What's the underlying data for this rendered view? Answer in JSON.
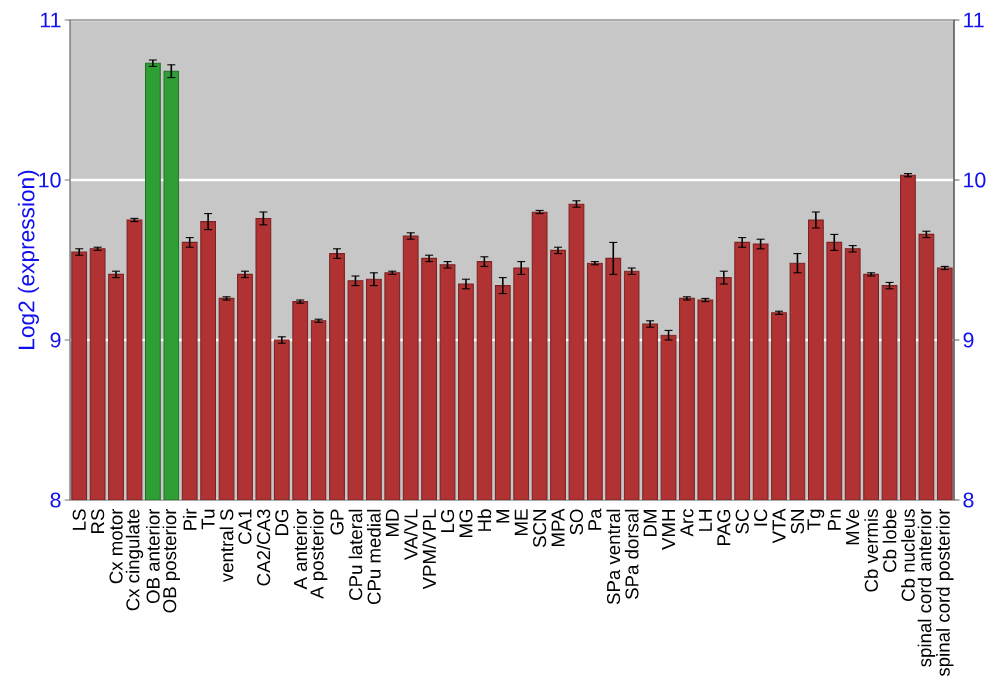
{
  "chart_data": {
    "type": "bar",
    "ylabel": "Log2 (expression)",
    "categories": [
      "LS",
      "RS",
      "Cx motor",
      "Cx cingulate",
      "OB anterior",
      "OB posterior",
      "Pir",
      "Tu",
      "ventral S",
      "CA1",
      "CA2/CA3",
      "DG",
      "A anterior",
      "A posterior",
      "GP",
      "CPu lateral",
      "CPu medial",
      "MD",
      "VA/VL",
      "VPM/VPL",
      "LG",
      "MG",
      "Hb",
      "M",
      "ME",
      "SCN",
      "MPA",
      "SO",
      "Pa",
      "SPa ventral",
      "SPa dorsal",
      "DM",
      "VMH",
      "Arc",
      "LH",
      "PAG",
      "SC",
      "IC",
      "VTA",
      "SN",
      "Tg",
      "Pn",
      "MVe",
      "Cb vermis",
      "Cb lobe",
      "Cb nucleus",
      "spinal cord anterior",
      "spinal cord posterior"
    ],
    "values": [
      9.55,
      9.57,
      9.41,
      9.75,
      10.73,
      10.68,
      9.61,
      9.74,
      9.26,
      9.41,
      9.76,
      9.0,
      9.24,
      9.12,
      9.54,
      9.37,
      9.38,
      9.42,
      9.65,
      9.51,
      9.47,
      9.35,
      9.49,
      9.34,
      9.45,
      9.8,
      9.56,
      9.85,
      9.48,
      9.51,
      9.43,
      9.1,
      9.03,
      9.26,
      9.25,
      9.39,
      9.61,
      9.6,
      9.17,
      9.48,
      9.75,
      9.61,
      9.57,
      9.41,
      9.34,
      10.03,
      9.66,
      9.45
    ],
    "errors": [
      0.02,
      0.01,
      0.02,
      0.01,
      0.02,
      0.04,
      0.03,
      0.05,
      0.01,
      0.02,
      0.04,
      0.02,
      0.01,
      0.01,
      0.03,
      0.03,
      0.04,
      0.01,
      0.02,
      0.02,
      0.02,
      0.03,
      0.03,
      0.05,
      0.04,
      0.01,
      0.02,
      0.02,
      0.01,
      0.1,
      0.02,
      0.02,
      0.03,
      0.01,
      0.01,
      0.04,
      0.03,
      0.03,
      0.01,
      0.06,
      0.05,
      0.05,
      0.02,
      0.01,
      0.02,
      0.01,
      0.02,
      0.01
    ],
    "colors": [
      "#b03232",
      "#b03232",
      "#b03232",
      "#b03232",
      "#2f9e35",
      "#2f9e35",
      "#b03232",
      "#b03232",
      "#b03232",
      "#b03232",
      "#b03232",
      "#b03232",
      "#b03232",
      "#b03232",
      "#b03232",
      "#b03232",
      "#b03232",
      "#b03232",
      "#b03232",
      "#b03232",
      "#b03232",
      "#b03232",
      "#b03232",
      "#b03232",
      "#b03232",
      "#b03232",
      "#b03232",
      "#b03232",
      "#b03232",
      "#b03232",
      "#b03232",
      "#b03232",
      "#b03232",
      "#b03232",
      "#b03232",
      "#b03232",
      "#b03232",
      "#b03232",
      "#b03232",
      "#b03232",
      "#b03232",
      "#b03232",
      "#b03232",
      "#b03232",
      "#b03232",
      "#b03232",
      "#b03232",
      "#b03232"
    ],
    "ylim": [
      8,
      11
    ],
    "yticks": [
      8,
      9,
      10,
      11
    ],
    "y2lim": [
      8,
      11
    ],
    "y2ticks": [
      8,
      9,
      10,
      11
    ],
    "grid": "y"
  }
}
